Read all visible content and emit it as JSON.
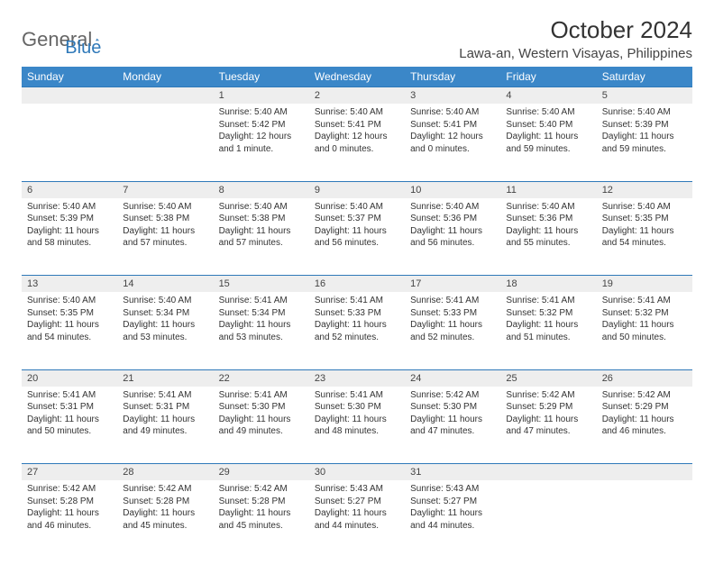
{
  "brand": {
    "part1": "General",
    "part2": "Blue"
  },
  "title": "October 2024",
  "location": "Lawa-an, Western Visayas, Philippines",
  "colors": {
    "header_bg": "#3b87c8",
    "header_text": "#ffffff",
    "daynum_bg": "#eeeeee",
    "rule": "#2f79b9",
    "text": "#333333",
    "brand_blue": "#2f79b9",
    "brand_gray": "#666666"
  },
  "day_headers": [
    "Sunday",
    "Monday",
    "Tuesday",
    "Wednesday",
    "Thursday",
    "Friday",
    "Saturday"
  ],
  "weeks": [
    [
      null,
      null,
      {
        "n": "1",
        "sr": "5:40 AM",
        "ss": "5:42 PM",
        "dl": "12 hours and 1 minute."
      },
      {
        "n": "2",
        "sr": "5:40 AM",
        "ss": "5:41 PM",
        "dl": "12 hours and 0 minutes."
      },
      {
        "n": "3",
        "sr": "5:40 AM",
        "ss": "5:41 PM",
        "dl": "12 hours and 0 minutes."
      },
      {
        "n": "4",
        "sr": "5:40 AM",
        "ss": "5:40 PM",
        "dl": "11 hours and 59 minutes."
      },
      {
        "n": "5",
        "sr": "5:40 AM",
        "ss": "5:39 PM",
        "dl": "11 hours and 59 minutes."
      }
    ],
    [
      {
        "n": "6",
        "sr": "5:40 AM",
        "ss": "5:39 PM",
        "dl": "11 hours and 58 minutes."
      },
      {
        "n": "7",
        "sr": "5:40 AM",
        "ss": "5:38 PM",
        "dl": "11 hours and 57 minutes."
      },
      {
        "n": "8",
        "sr": "5:40 AM",
        "ss": "5:38 PM",
        "dl": "11 hours and 57 minutes."
      },
      {
        "n": "9",
        "sr": "5:40 AM",
        "ss": "5:37 PM",
        "dl": "11 hours and 56 minutes."
      },
      {
        "n": "10",
        "sr": "5:40 AM",
        "ss": "5:36 PM",
        "dl": "11 hours and 56 minutes."
      },
      {
        "n": "11",
        "sr": "5:40 AM",
        "ss": "5:36 PM",
        "dl": "11 hours and 55 minutes."
      },
      {
        "n": "12",
        "sr": "5:40 AM",
        "ss": "5:35 PM",
        "dl": "11 hours and 54 minutes."
      }
    ],
    [
      {
        "n": "13",
        "sr": "5:40 AM",
        "ss": "5:35 PM",
        "dl": "11 hours and 54 minutes."
      },
      {
        "n": "14",
        "sr": "5:40 AM",
        "ss": "5:34 PM",
        "dl": "11 hours and 53 minutes."
      },
      {
        "n": "15",
        "sr": "5:41 AM",
        "ss": "5:34 PM",
        "dl": "11 hours and 53 minutes."
      },
      {
        "n": "16",
        "sr": "5:41 AM",
        "ss": "5:33 PM",
        "dl": "11 hours and 52 minutes."
      },
      {
        "n": "17",
        "sr": "5:41 AM",
        "ss": "5:33 PM",
        "dl": "11 hours and 52 minutes."
      },
      {
        "n": "18",
        "sr": "5:41 AM",
        "ss": "5:32 PM",
        "dl": "11 hours and 51 minutes."
      },
      {
        "n": "19",
        "sr": "5:41 AM",
        "ss": "5:32 PM",
        "dl": "11 hours and 50 minutes."
      }
    ],
    [
      {
        "n": "20",
        "sr": "5:41 AM",
        "ss": "5:31 PM",
        "dl": "11 hours and 50 minutes."
      },
      {
        "n": "21",
        "sr": "5:41 AM",
        "ss": "5:31 PM",
        "dl": "11 hours and 49 minutes."
      },
      {
        "n": "22",
        "sr": "5:41 AM",
        "ss": "5:30 PM",
        "dl": "11 hours and 49 minutes."
      },
      {
        "n": "23",
        "sr": "5:41 AM",
        "ss": "5:30 PM",
        "dl": "11 hours and 48 minutes."
      },
      {
        "n": "24",
        "sr": "5:42 AM",
        "ss": "5:30 PM",
        "dl": "11 hours and 47 minutes."
      },
      {
        "n": "25",
        "sr": "5:42 AM",
        "ss": "5:29 PM",
        "dl": "11 hours and 47 minutes."
      },
      {
        "n": "26",
        "sr": "5:42 AM",
        "ss": "5:29 PM",
        "dl": "11 hours and 46 minutes."
      }
    ],
    [
      {
        "n": "27",
        "sr": "5:42 AM",
        "ss": "5:28 PM",
        "dl": "11 hours and 46 minutes."
      },
      {
        "n": "28",
        "sr": "5:42 AM",
        "ss": "5:28 PM",
        "dl": "11 hours and 45 minutes."
      },
      {
        "n": "29",
        "sr": "5:42 AM",
        "ss": "5:28 PM",
        "dl": "11 hours and 45 minutes."
      },
      {
        "n": "30",
        "sr": "5:43 AM",
        "ss": "5:27 PM",
        "dl": "11 hours and 44 minutes."
      },
      {
        "n": "31",
        "sr": "5:43 AM",
        "ss": "5:27 PM",
        "dl": "11 hours and 44 minutes."
      },
      null,
      null
    ]
  ],
  "labels": {
    "sunrise": "Sunrise:",
    "sunset": "Sunset:",
    "daylight": "Daylight:"
  }
}
